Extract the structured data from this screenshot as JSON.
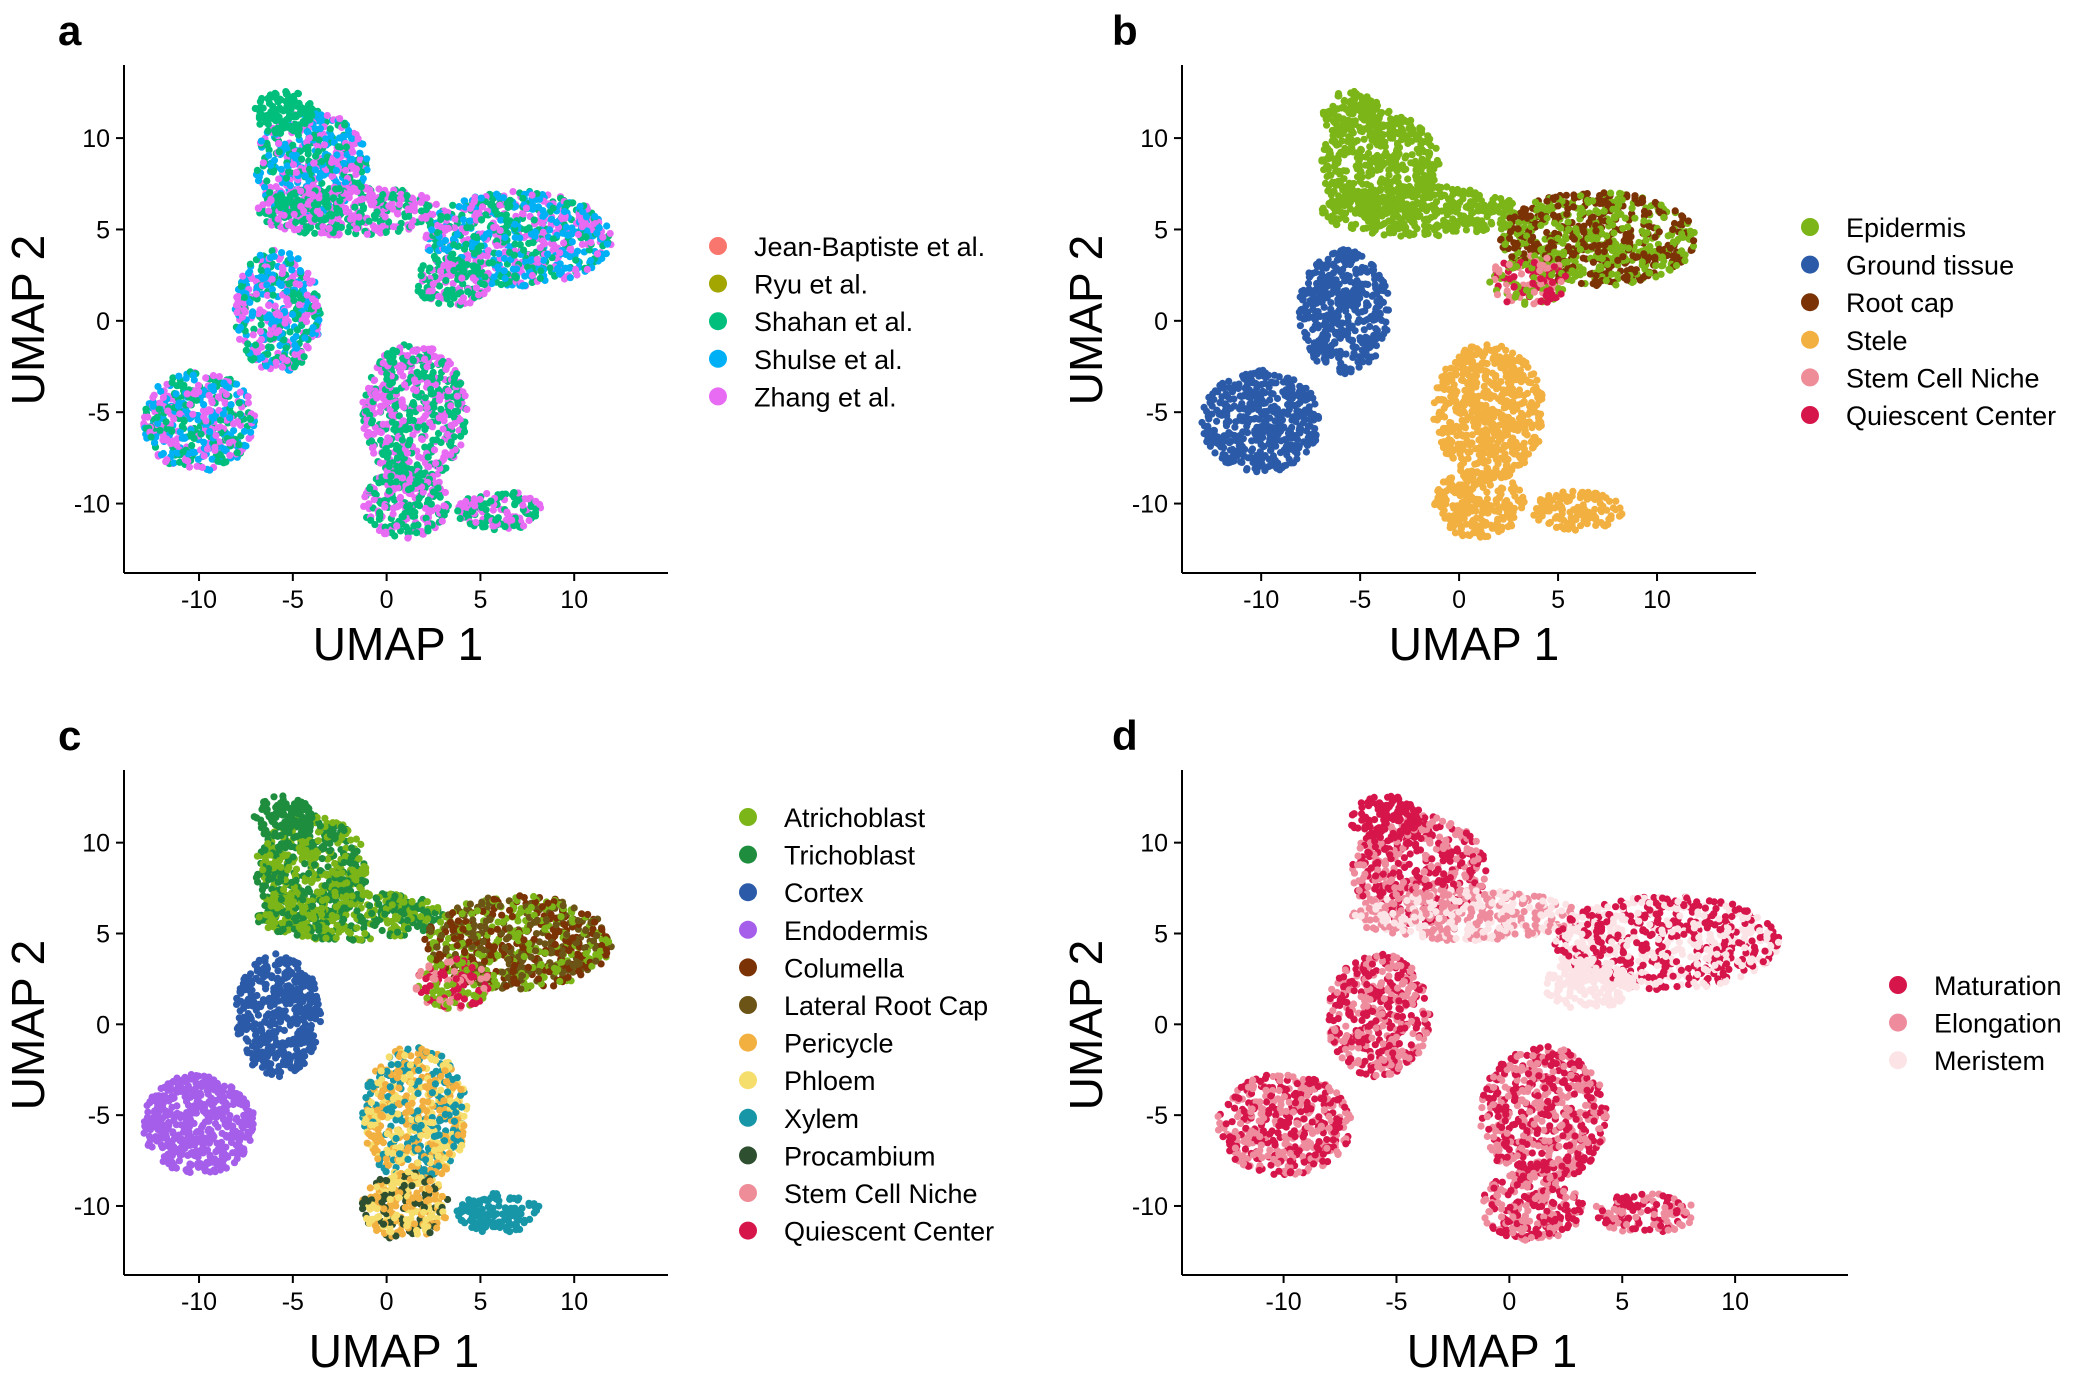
{
  "chart_data": [
    {
      "panel": "a",
      "type": "scatter",
      "title": "",
      "xlabel": "UMAP 1",
      "ylabel": "UMAP 2",
      "xlim": [
        -14,
        15
      ],
      "ylim": [
        -13.8,
        14
      ],
      "xticks": [
        -10,
        -5,
        0,
        5,
        10
      ],
      "yticks": [
        -10,
        -5,
        0,
        5,
        10
      ],
      "grid": false,
      "legend_position": "right",
      "series": [
        {
          "name": "Jean-Baptiste et al.",
          "color": "#F8766D"
        },
        {
          "name": "Ryu et al.",
          "color": "#A3A500"
        },
        {
          "name": "Shahan et al.",
          "color": "#00BF7D"
        },
        {
          "name": "Shulse et al.",
          "color": "#00B0F6"
        },
        {
          "name": "Zhang et al.",
          "color": "#E76BF3"
        }
      ]
    },
    {
      "panel": "b",
      "type": "scatter",
      "title": "",
      "xlabel": "UMAP 1",
      "ylabel": "UMAP 2",
      "xlim": [
        -14,
        15
      ],
      "ylim": [
        -13.8,
        14
      ],
      "xticks": [
        -10,
        -5,
        0,
        5,
        10
      ],
      "yticks": [
        -10,
        -5,
        0,
        5,
        10
      ],
      "grid": false,
      "legend_position": "right",
      "series": [
        {
          "name": "Epidermis",
          "color": "#7CB518"
        },
        {
          "name": "Ground tissue",
          "color": "#2B5BA8"
        },
        {
          "name": "Root cap",
          "color": "#7B3305"
        },
        {
          "name": "Stele",
          "color": "#F2B040"
        },
        {
          "name": "Stem Cell Niche",
          "color": "#EE8C97"
        },
        {
          "name": "Quiescent Center",
          "color": "#D6154B"
        }
      ]
    },
    {
      "panel": "c",
      "type": "scatter",
      "title": "",
      "xlabel": "UMAP 1",
      "ylabel": "UMAP 2",
      "xlim": [
        -14,
        15
      ],
      "ylim": [
        -13.8,
        14
      ],
      "xticks": [
        -10,
        -5,
        0,
        5,
        10
      ],
      "yticks": [
        -10,
        -5,
        0,
        5,
        10
      ],
      "grid": false,
      "legend_position": "right",
      "series": [
        {
          "name": "Atrichoblast",
          "color": "#7CB518"
        },
        {
          "name": "Trichoblast",
          "color": "#1E8E3E"
        },
        {
          "name": "Cortex",
          "color": "#2B5BA8"
        },
        {
          "name": "Endodermis",
          "color": "#A55EEA"
        },
        {
          "name": "Columella",
          "color": "#7B3305"
        },
        {
          "name": "Lateral Root Cap",
          "color": "#6B5416"
        },
        {
          "name": "Pericycle",
          "color": "#F2B040"
        },
        {
          "name": "Phloem",
          "color": "#F6DE6C"
        },
        {
          "name": "Xylem",
          "color": "#1796A8"
        },
        {
          "name": "Procambium",
          "color": "#2F5030"
        },
        {
          "name": "Stem Cell Niche",
          "color": "#EE8C97"
        },
        {
          "name": "Quiescent Center",
          "color": "#D6154B"
        }
      ]
    },
    {
      "panel": "d",
      "type": "scatter",
      "title": "",
      "xlabel": "UMAP 1",
      "ylabel": "UMAP 2",
      "xlim": [
        -14.5,
        15
      ],
      "ylim": [
        -13.8,
        14
      ],
      "xticks": [
        -10,
        -5,
        0,
        5,
        10
      ],
      "yticks": [
        -10,
        -5,
        0,
        5,
        10
      ],
      "grid": false,
      "legend_position": "right",
      "series": [
        {
          "name": "Maturation",
          "color": "#D6154B"
        },
        {
          "name": "Elongation",
          "color": "#EE8C9E"
        },
        {
          "name": "Meristem",
          "color": "#FCE4E6"
        }
      ]
    }
  ]
}
